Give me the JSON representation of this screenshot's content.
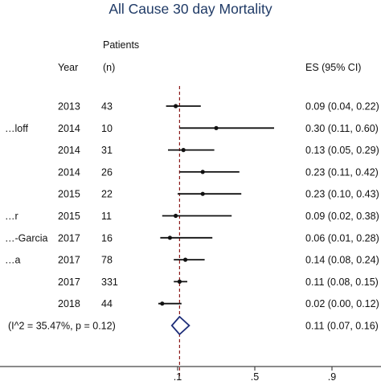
{
  "chart_data": {
    "type": "forest",
    "title": "All Cause 30 day Mortality",
    "headers": {
      "year": "Year",
      "patients_line1": "Patients",
      "patients_line2": "(n)",
      "es": "ES (95% CI)"
    },
    "xlim": [
      0.0,
      1.0
    ],
    "x_ticks": [
      {
        "value": 0.1,
        "label": ".1"
      },
      {
        "value": 0.5,
        "label": ".5"
      },
      {
        "value": 0.9,
        "label": ".9"
      }
    ],
    "reference_line": 0.11,
    "studies": [
      {
        "study": "",
        "year": "2013",
        "n": "43",
        "es": 0.09,
        "lo": 0.04,
        "hi": 0.22,
        "es_label": "0.09 (0.04, 0.22)"
      },
      {
        "study": "…loff",
        "year": "2014",
        "n": "10",
        "es": 0.3,
        "lo": 0.11,
        "hi": 0.6,
        "es_label": "0.30 (0.11, 0.60)"
      },
      {
        "study": "",
        "year": "2014",
        "n": "31",
        "es": 0.13,
        "lo": 0.05,
        "hi": 0.29,
        "es_label": "0.13 (0.05, 0.29)"
      },
      {
        "study": "",
        "year": "2014",
        "n": "26",
        "es": 0.23,
        "lo": 0.11,
        "hi": 0.42,
        "es_label": "0.23 (0.11, 0.42)"
      },
      {
        "study": "",
        "year": "2015",
        "n": "22",
        "es": 0.23,
        "lo": 0.1,
        "hi": 0.43,
        "es_label": "0.23 (0.10, 0.43)"
      },
      {
        "study": "…r",
        "year": "2015",
        "n": "11",
        "es": 0.09,
        "lo": 0.02,
        "hi": 0.38,
        "es_label": "0.09 (0.02, 0.38)"
      },
      {
        "study": "…-Garcia",
        "year": "2017",
        "n": "16",
        "es": 0.06,
        "lo": 0.01,
        "hi": 0.28,
        "es_label": "0.06 (0.01, 0.28)"
      },
      {
        "study": "…a",
        "year": "2017",
        "n": "78",
        "es": 0.14,
        "lo": 0.08,
        "hi": 0.24,
        "es_label": "0.14 (0.08, 0.24)"
      },
      {
        "study": "",
        "year": "2017",
        "n": "331",
        "es": 0.11,
        "lo": 0.08,
        "hi": 0.15,
        "es_label": "0.11 (0.08, 0.15)"
      },
      {
        "study": "",
        "year": "2018",
        "n": "44",
        "es": 0.02,
        "lo": 0.0,
        "hi": 0.12,
        "es_label": "0.02 (0.00, 0.12)"
      }
    ],
    "overall": {
      "label": "(I^2 = 35.47%, p = 0.12)",
      "es": 0.11,
      "lo": 0.07,
      "hi": 0.16,
      "es_label": "0.11 (0.07, 0.16)"
    },
    "colors": {
      "title": "#1f3a66",
      "marks": "#111111",
      "diamond": "#1c2c78",
      "reference": "#8b1a1a",
      "axis": "#444444"
    }
  }
}
